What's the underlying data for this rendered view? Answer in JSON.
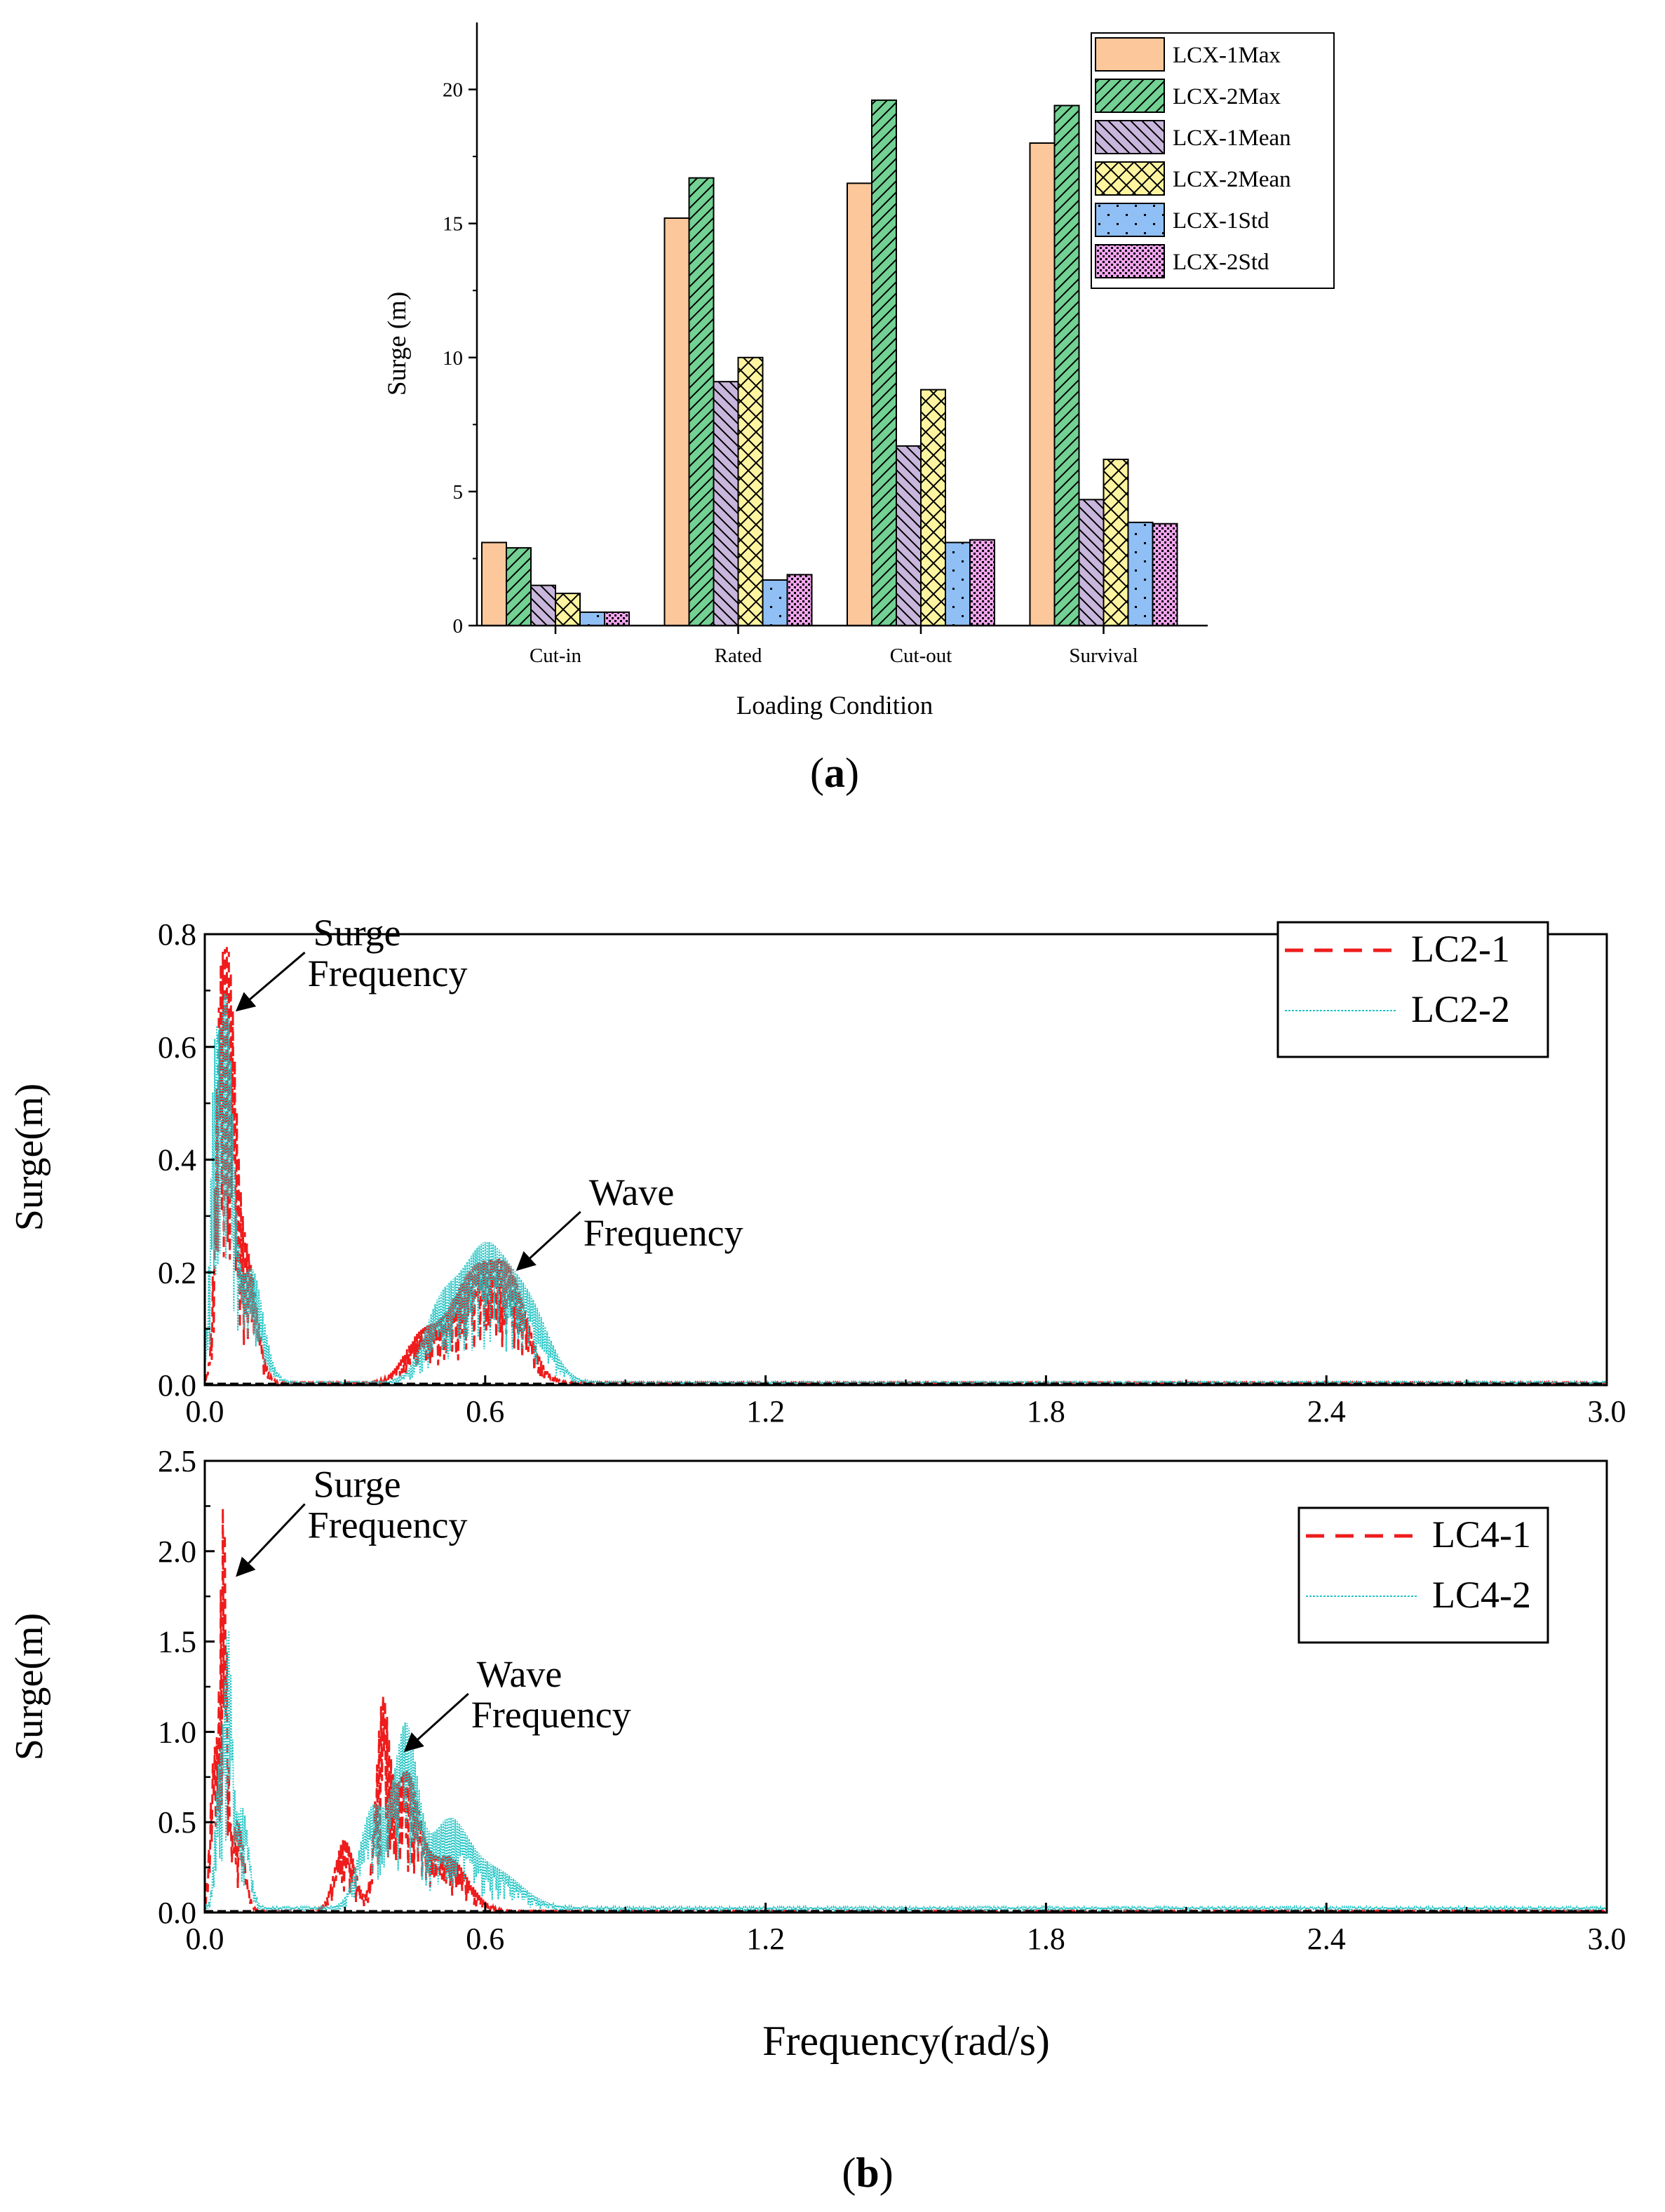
{
  "figure": {
    "panel_a_label_letter": "a",
    "panel_b_label_letter": "b"
  },
  "colors": {
    "lcx1max": "#fcc89b",
    "lcx2max": "#72d193",
    "lcx1mean": "#c9b6dc",
    "lcx2mean": "#fff4a0",
    "lcx1std": "#8fbff5",
    "lcx2std": "#f4a6f0",
    "red": "#ee1c1c",
    "cyan": "#22c5c5",
    "dark": "#7a2a20"
  },
  "chart_data": [
    {
      "id": "a",
      "type": "bar",
      "xlabel": "Loading Condition",
      "ylabel": "Surge (m)",
      "ylim": [
        0,
        22.5
      ],
      "yticks": [
        0,
        5,
        10,
        15,
        20
      ],
      "categories": [
        "Cut-in",
        "Rated",
        "Cut-out",
        "Survival"
      ],
      "legend_position": "top-right",
      "series": [
        {
          "name": "LCX-1Max",
          "color_key": "lcx1max",
          "pattern": "solid",
          "values": [
            3.1,
            15.2,
            16.5,
            18.0
          ]
        },
        {
          "name": "LCX-2Max",
          "color_key": "lcx2max",
          "pattern": "hatch",
          "values": [
            2.9,
            16.7,
            19.6,
            19.4
          ]
        },
        {
          "name": "LCX-1Mean",
          "color_key": "lcx1mean",
          "pattern": "backhatch",
          "values": [
            1.5,
            9.1,
            6.7,
            4.7
          ]
        },
        {
          "name": "LCX-2Mean",
          "color_key": "lcx2mean",
          "pattern": "crosshatch",
          "values": [
            1.2,
            10.0,
            8.8,
            6.2
          ]
        },
        {
          "name": "LCX-1Std",
          "color_key": "lcx1std",
          "pattern": "dots",
          "values": [
            0.5,
            1.7,
            3.1,
            3.85
          ]
        },
        {
          "name": "LCX-2Std",
          "color_key": "lcx2std",
          "pattern": "checker",
          "values": [
            0.5,
            1.9,
            3.2,
            3.8
          ]
        }
      ]
    },
    {
      "id": "b1",
      "type": "line",
      "xlabel": "",
      "ylabel": "Surge(m)",
      "xlim": [
        0,
        3.0
      ],
      "ylim": [
        0,
        0.8
      ],
      "xticks": [
        0.0,
        0.6,
        1.2,
        1.8,
        2.4,
        3.0
      ],
      "xtick_labels": [
        "0.0",
        "0.6",
        "1.2",
        "1.8",
        "2.4",
        "3.0"
      ],
      "yticks": [
        0.0,
        0.2,
        0.4,
        0.6,
        0.8
      ],
      "ytick_labels": [
        "0.0",
        "0.2",
        "0.4",
        "0.6",
        "0.8"
      ],
      "legend_position": "top-right",
      "annotations": [
        {
          "line1": "Surge",
          "line2": "Frequency",
          "target_x": 0.06,
          "target_y": 0.66,
          "text_x": 0.22,
          "text_y": 0.78
        },
        {
          "line1": "Wave",
          "line2": "Frequency",
          "target_x": 0.66,
          "target_y": 0.2,
          "text_x": 0.81,
          "text_y": 0.32
        }
      ],
      "series": [
        {
          "name": "LC2-1",
          "color_key": "red",
          "style": "dashed",
          "peaks": [
            {
              "f": 0.05,
              "a": 0.71,
              "w": 0.022
            },
            {
              "f": 0.03,
              "a": 0.35,
              "w": 0.012
            },
            {
              "f": 0.09,
              "a": 0.22,
              "w": 0.03
            },
            {
              "f": 0.46,
              "a": 0.07,
              "w": 0.05
            },
            {
              "f": 0.58,
              "a": 0.2,
              "w": 0.08
            },
            {
              "f": 0.66,
              "a": 0.12,
              "w": 0.05
            }
          ],
          "floor": 0.005
        },
        {
          "name": "LC2-2",
          "color_key": "cyan",
          "style": "dotted",
          "peaks": [
            {
              "f": 0.045,
              "a": 0.67,
              "w": 0.022
            },
            {
              "f": 0.02,
              "a": 0.4,
              "w": 0.012
            },
            {
              "f": 0.1,
              "a": 0.2,
              "w": 0.035
            },
            {
              "f": 0.5,
              "a": 0.1,
              "w": 0.05
            },
            {
              "f": 0.6,
              "a": 0.24,
              "w": 0.08
            },
            {
              "f": 0.7,
              "a": 0.1,
              "w": 0.06
            }
          ],
          "floor": 0.006
        }
      ]
    },
    {
      "id": "b2",
      "type": "line",
      "xlabel": "Frequency(rad/s)",
      "ylabel": "Surge(m)",
      "xlim": [
        0,
        3.0
      ],
      "ylim": [
        0,
        2.5
      ],
      "xticks": [
        0.0,
        0.6,
        1.2,
        1.8,
        2.4,
        3.0
      ],
      "xtick_labels": [
        "0.0",
        "0.6",
        "1.2",
        "1.8",
        "2.4",
        "3.0"
      ],
      "yticks": [
        0.0,
        0.5,
        1.0,
        1.5,
        2.0,
        2.5
      ],
      "ytick_labels": [
        "0.0",
        "0.5",
        "1.0",
        "1.5",
        "2.0",
        "2.5"
      ],
      "legend_position": "top-right",
      "annotations": [
        {
          "line1": "Surge",
          "line2": "Frequency",
          "target_x": 0.06,
          "target_y": 1.85,
          "text_x": 0.22,
          "text_y": 2.3
        },
        {
          "line1": "Wave",
          "line2": "Frequency",
          "target_x": 0.42,
          "target_y": 0.88,
          "text_x": 0.57,
          "text_y": 1.25
        }
      ],
      "series": [
        {
          "name": "LC4-1",
          "color_key": "red",
          "style": "dashed",
          "peaks": [
            {
              "f": 0.04,
              "a": 2.15,
              "w": 0.01
            },
            {
              "f": 0.02,
              "a": 0.85,
              "w": 0.012
            },
            {
              "f": 0.07,
              "a": 0.5,
              "w": 0.02
            },
            {
              "f": 0.3,
              "a": 0.4,
              "w": 0.03
            },
            {
              "f": 0.38,
              "a": 1.02,
              "w": 0.02
            },
            {
              "f": 0.43,
              "a": 0.75,
              "w": 0.04
            },
            {
              "f": 0.52,
              "a": 0.3,
              "w": 0.06
            }
          ],
          "floor": 0.01
        },
        {
          "name": "LC4-2",
          "color_key": "cyan",
          "style": "dotted",
          "peaks": [
            {
              "f": 0.05,
              "a": 1.45,
              "w": 0.012
            },
            {
              "f": 0.03,
              "a": 0.7,
              "w": 0.012
            },
            {
              "f": 0.08,
              "a": 0.55,
              "w": 0.02
            },
            {
              "f": 0.36,
              "a": 0.55,
              "w": 0.04
            },
            {
              "f": 0.43,
              "a": 0.95,
              "w": 0.035
            },
            {
              "f": 0.52,
              "a": 0.45,
              "w": 0.06
            },
            {
              "f": 0.62,
              "a": 0.2,
              "w": 0.08
            }
          ],
          "floor": 0.03
        }
      ]
    }
  ]
}
